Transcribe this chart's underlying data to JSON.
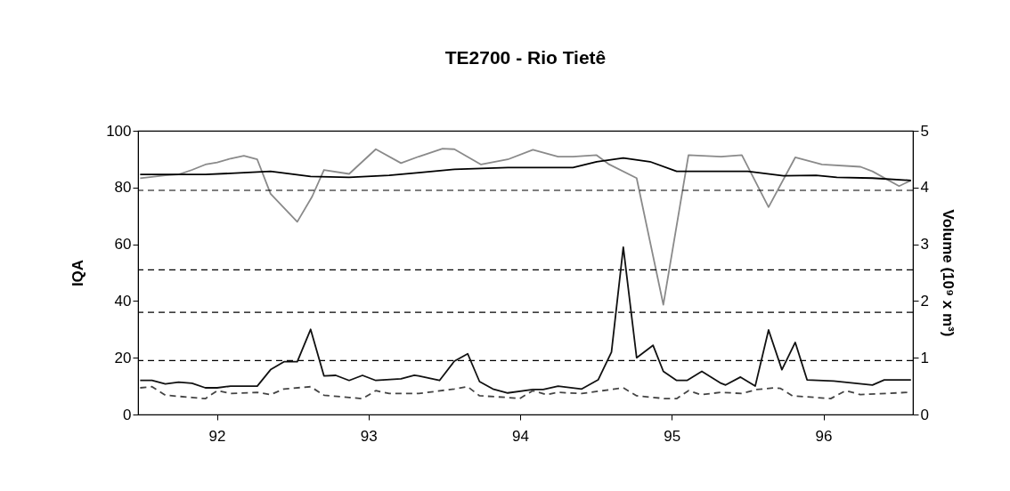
{
  "chart_data": {
    "type": "line",
    "title": "TE2700 - Rio Tietê",
    "ylabel": "IQA",
    "y2label": "Volume (10⁹ x m³)",
    "xlim": [
      91.48,
      96.59
    ],
    "xticks": [
      92,
      93,
      94,
      95,
      96
    ],
    "ylim": [
      0,
      100
    ],
    "yticks": [
      0,
      20,
      40,
      60,
      80,
      100
    ],
    "y2lim": [
      0,
      5
    ],
    "y2ticks": [
      0,
      1,
      2,
      3,
      4,
      5
    ],
    "grid": false,
    "line_style": "solid",
    "series": [
      {
        "color": "#8a8a8a",
        "x": [
          91.494,
          91.66,
          91.748,
          91.836,
          91.924,
          92.002,
          92.09,
          92.178,
          92.266,
          92.354,
          92.53,
          92.628,
          92.706,
          92.872,
          93.048,
          93.214,
          93.331,
          93.488,
          93.566,
          93.742,
          93.918,
          94.084,
          94.25,
          94.348,
          94.504,
          94.582,
          94.768,
          94.944,
          95.11,
          95.325,
          95.462,
          95.638,
          95.814,
          95.99,
          96.244,
          96.323,
          96.499,
          96.577
        ],
        "values": [
          83.3,
          84.3,
          84.6,
          86.2,
          88.1,
          88.8,
          90.2,
          91.2,
          89.9,
          77.8,
          67.9,
          76.8,
          86.2,
          84.8,
          93.5,
          88.6,
          90.9,
          93.7,
          93.5,
          88.1,
          89.9,
          93.3,
          90.9,
          90.9,
          91.4,
          88.3,
          83.3,
          38.7,
          91.4,
          90.9,
          91.4,
          73.1,
          90.6,
          88.1,
          87.3,
          85.7,
          80.5,
          82.5
        ]
      },
      {
        "color": "#000000",
        "x": [
          91.494,
          91.924,
          92.178,
          92.354,
          92.618,
          92.872,
          93.136,
          93.331,
          93.566,
          93.918,
          94.348,
          94.504,
          94.68,
          94.856,
          95.032,
          95.501,
          95.736,
          95.951,
          96.088,
          96.323,
          96.577
        ],
        "values": [
          84.6,
          84.6,
          85.2,
          85.7,
          83.9,
          83.6,
          84.3,
          85.2,
          86.4,
          87.0,
          87.0,
          89.1,
          90.4,
          89.1,
          85.7,
          85.7,
          84.1,
          84.3,
          83.6,
          83.3,
          82.5
        ]
      },
      {
        "color": "#111111",
        "axis": "y2",
        "x": [
          91.494,
          91.572,
          91.66,
          91.748,
          91.836,
          91.924,
          92.002,
          92.09,
          92.266,
          92.354,
          92.442,
          92.53,
          92.618,
          92.706,
          92.784,
          92.872,
          92.96,
          93.048,
          93.214,
          93.302,
          93.331,
          93.468,
          93.566,
          93.654,
          93.732,
          93.82,
          93.918,
          94.084,
          94.152,
          94.25,
          94.406,
          94.514,
          94.602,
          94.68,
          94.768,
          94.876,
          94.944,
          95.032,
          95.1,
          95.198,
          95.325,
          95.355,
          95.453,
          95.55,
          95.638,
          95.726,
          95.814,
          95.892,
          96.068,
          96.323,
          96.401,
          96.577
        ],
        "values": [
          0.6,
          0.6,
          0.54,
          0.57,
          0.55,
          0.47,
          0.47,
          0.5,
          0.5,
          0.79,
          0.93,
          0.93,
          1.5,
          0.68,
          0.69,
          0.6,
          0.69,
          0.6,
          0.63,
          0.69,
          0.68,
          0.6,
          0.94,
          1.07,
          0.58,
          0.45,
          0.38,
          0.44,
          0.44,
          0.5,
          0.45,
          0.61,
          1.1,
          2.95,
          1.0,
          1.22,
          0.76,
          0.6,
          0.6,
          0.76,
          0.55,
          0.52,
          0.66,
          0.5,
          1.49,
          0.79,
          1.27,
          0.61,
          0.59,
          0.52,
          0.61,
          0.61
        ]
      },
      {
        "color": "#444444",
        "axis": "y2",
        "line_style": "dashed",
        "x": [
          91.494,
          91.572,
          91.66,
          91.836,
          91.924,
          92.002,
          92.09,
          92.266,
          92.354,
          92.442,
          92.618,
          92.706,
          92.872,
          92.96,
          93.048,
          93.136,
          93.331,
          93.566,
          93.654,
          93.732,
          93.918,
          93.996,
          94.084,
          94.172,
          94.25,
          94.406,
          94.68,
          94.768,
          94.954,
          95.032,
          95.11,
          95.189,
          95.325,
          95.462,
          95.56,
          95.677,
          95.717,
          95.795,
          96.048,
          96.147,
          96.244,
          96.557
        ],
        "values": [
          0.47,
          0.49,
          0.34,
          0.3,
          0.28,
          0.42,
          0.37,
          0.39,
          0.35,
          0.45,
          0.49,
          0.34,
          0.3,
          0.28,
          0.42,
          0.37,
          0.37,
          0.45,
          0.49,
          0.33,
          0.3,
          0.28,
          0.42,
          0.35,
          0.39,
          0.37,
          0.47,
          0.33,
          0.28,
          0.28,
          0.42,
          0.35,
          0.39,
          0.37,
          0.44,
          0.47,
          0.46,
          0.33,
          0.28,
          0.42,
          0.35,
          0.39
        ]
      }
    ],
    "ref_lines": [
      {
        "axis": "y",
        "value": 79,
        "line_style": "dashed",
        "color": "#000000"
      },
      {
        "axis": "y",
        "value": 51,
        "line_style": "dashed",
        "color": "#000000"
      },
      {
        "axis": "y",
        "value": 36,
        "line_style": "dashed",
        "color": "#000000"
      },
      {
        "axis": "y",
        "value": 19,
        "line_style": "dashed",
        "color": "#000000"
      }
    ]
  }
}
